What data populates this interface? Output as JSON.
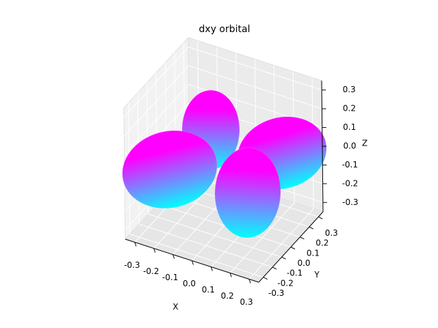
{
  "chart_data": {
    "type": "surface3d",
    "title": "dxy orbital",
    "x_label": "X",
    "y_label": "Y",
    "z_label": "Z",
    "xlim": [
      -0.35,
      0.35
    ],
    "ylim": [
      -0.35,
      0.35
    ],
    "zlim": [
      -0.35,
      0.35
    ],
    "xticks": [
      -0.3,
      -0.2,
      -0.1,
      {
        "value": 0,
        "label": "0.0"
      },
      0.1,
      0.2,
      0.3
    ],
    "yticks": [
      -0.3,
      -0.2,
      -0.1,
      {
        "value": 0,
        "label": "0.0"
      },
      0.1,
      0.2,
      0.3
    ],
    "zticks": [
      -0.3,
      -0.2,
      -0.1,
      {
        "value": 0,
        "label": "0.0"
      },
      0.1,
      0.2,
      0.3
    ],
    "colormap": [
      "#00ffff",
      "#ff00ff"
    ],
    "grid": true
  }
}
